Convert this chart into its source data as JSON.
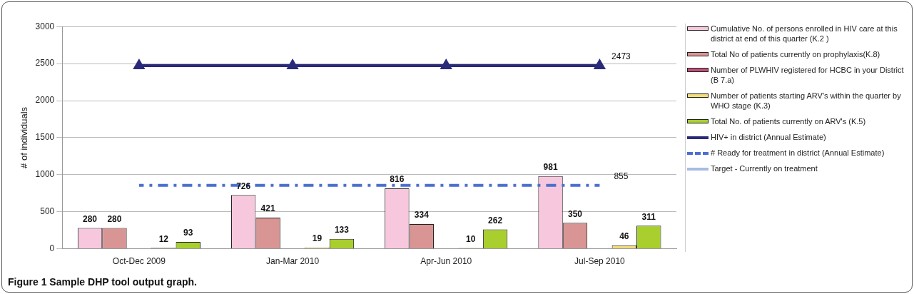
{
  "chart_data": {
    "type": "bar",
    "ylabel": "# of individuals",
    "categories": [
      "Oct-Dec 2009",
      "Jan-Mar 2010",
      "Apr-Jun 2010",
      "Jul-Sep 2010"
    ],
    "series": [
      {
        "name": "Cumulative No. of persons enrolled in HIV care at this district at end of this quarter (K.2 )",
        "color": "#f7c8dd",
        "values": [
          280,
          726,
          816,
          981
        ],
        "value_labels": [
          "280",
          "726",
          "816",
          "981"
        ]
      },
      {
        "name": "Total No of patients currently on prophylaxis(K.8)",
        "color": "#d99594",
        "values": [
          280,
          421,
          334,
          350
        ],
        "value_labels": [
          "280",
          "421",
          "334",
          "350"
        ]
      },
      {
        "name": "Number of PLWHIV registered for HCBC in your District (B 7.a)",
        "color": "#c0507a",
        "values": [
          null,
          null,
          null,
          null
        ]
      },
      {
        "name": "Number of patients starting ARV's within the quarter by WHO stage (K.3)",
        "color": "#f3dc7a",
        "values": [
          12,
          19,
          10,
          46
        ],
        "value_labels": [
          "12",
          "19",
          "10",
          "46"
        ]
      },
      {
        "name": "Total No. of patients currently on ARV's (K.5)",
        "color": "#a8cf2e",
        "values": [
          93,
          133,
          262,
          311
        ],
        "value_labels": [
          "93",
          "133",
          "262",
          "311"
        ]
      },
      {
        "name": "HIV+ in district (Annual Estimate)",
        "type": "line",
        "color": "#2a2a7a",
        "marker": "triangle",
        "line_style": "solid",
        "values": [
          2473,
          2473,
          2473,
          2473
        ],
        "value_labels": [
          null,
          null,
          null,
          "2473"
        ]
      },
      {
        "name": "# Ready for treatment in district (Annual Estimate)",
        "type": "line",
        "color": "#4a6fd0",
        "marker": "none",
        "line_style": "dashed",
        "values": [
          855,
          855,
          855,
          855
        ],
        "value_labels": [
          null,
          null,
          null,
          "855"
        ]
      },
      {
        "name": "Target - Currently on treatment",
        "type": "line",
        "color": "#a8bce3",
        "marker": "cross",
        "line_style": "solid",
        "values": [
          null,
          null,
          null,
          null
        ]
      }
    ],
    "ylim": [
      0,
      3000
    ],
    "yticks": [
      0,
      500,
      1000,
      1500,
      2000,
      2500,
      3000
    ],
    "grid": "y",
    "legend": "right",
    "annotations": [
      "Figure 1 Sample DHP tool output graph."
    ]
  }
}
